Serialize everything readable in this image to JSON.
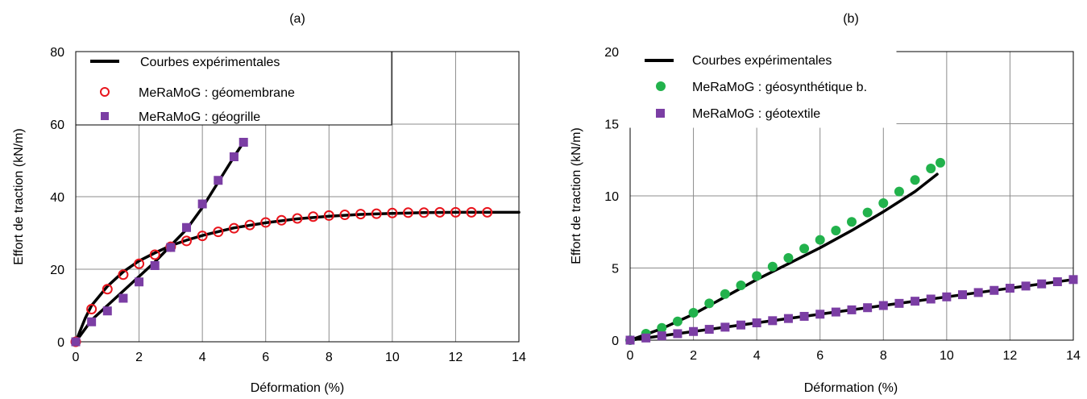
{
  "chart_data": [
    {
      "type": "line",
      "panel_label": "(a)",
      "xlabel": "Déformation (%)",
      "ylabel": "Effort de traction (kN/m)",
      "xlim": [
        0,
        14
      ],
      "ylim": [
        0,
        80
      ],
      "xticks": [
        0,
        2,
        4,
        6,
        8,
        10,
        12,
        14
      ],
      "yticks": [
        0,
        20,
        40,
        60,
        80
      ],
      "grid": true,
      "legend_position": "top-left",
      "series": [
        {
          "name": "Courbes expérimentales",
          "kind": "line",
          "color": "#000000",
          "x": [
            0,
            0.3,
            0.5,
            1,
            1.5,
            2,
            2.5,
            3,
            3.5,
            4,
            5,
            6,
            7,
            8,
            9,
            10,
            11,
            12,
            13,
            14
          ],
          "y": [
            0,
            6.5,
            10,
            15.3,
            19.3,
            22.3,
            24.5,
            26.5,
            28,
            29.3,
            31.4,
            32.8,
            33.9,
            34.6,
            35.1,
            35.4,
            35.6,
            35.7,
            35.7,
            35.7
          ]
        },
        {
          "name": "Courbes expérimentales",
          "kind": "line",
          "color": "#000000",
          "in_legend": false,
          "x": [
            0,
            0.5,
            1,
            1.5,
            2,
            2.5,
            3,
            3.5,
            4,
            4.5,
            5,
            5.3
          ],
          "y": [
            0,
            6,
            10,
            14,
            18,
            22,
            26.5,
            31,
            37,
            44,
            51,
            55
          ]
        },
        {
          "name": "MeRaMoG : géomembrane",
          "kind": "marker",
          "marker": "circle-open",
          "color": "#e8141c",
          "x": [
            0,
            0.5,
            1,
            1.5,
            2,
            2.5,
            3,
            3.5,
            4,
            4.5,
            5,
            5.5,
            6,
            6.5,
            7,
            7.5,
            8,
            8.5,
            9,
            9.5,
            10,
            10.5,
            11,
            11.5,
            12,
            12.5,
            13
          ],
          "y": [
            0,
            9,
            14.5,
            18.5,
            21.5,
            24,
            26.2,
            27.8,
            29.2,
            30.3,
            31.3,
            32.2,
            32.9,
            33.5,
            34,
            34.5,
            34.8,
            35,
            35.2,
            35.3,
            35.5,
            35.6,
            35.6,
            35.7,
            35.7,
            35.7,
            35.7
          ]
        },
        {
          "name": "MeRaMoG : géogrille",
          "kind": "marker",
          "marker": "square",
          "color": "#7b3ea4",
          "x": [
            0,
            0.5,
            1,
            1.5,
            2,
            2.5,
            3,
            3.5,
            4,
            4.5,
            5,
            5.3
          ],
          "y": [
            0,
            5.5,
            8.5,
            12,
            16.5,
            21,
            26,
            31.5,
            38,
            44.5,
            51,
            55
          ]
        }
      ]
    },
    {
      "type": "line",
      "panel_label": "(b)",
      "xlabel": "Déformation (%)",
      "ylabel": "Effort de traction (kN/m)",
      "xlim": [
        0,
        14
      ],
      "ylim": [
        0,
        20
      ],
      "xticks": [
        0,
        2,
        4,
        6,
        8,
        10,
        12,
        14
      ],
      "yticks": [
        0,
        5,
        10,
        15,
        20
      ],
      "grid": true,
      "legend_position": "top-left",
      "series": [
        {
          "name": "Courbes expérimentales",
          "kind": "line",
          "color": "#000000",
          "x": [
            0,
            0.5,
            1,
            1.5,
            2,
            3,
            4,
            5,
            6,
            7,
            8,
            9,
            9.7
          ],
          "y": [
            0,
            0.4,
            0.8,
            1.3,
            1.8,
            3,
            4.2,
            5.3,
            6.4,
            7.6,
            8.9,
            10.3,
            11.5
          ]
        },
        {
          "name": "Courbes expérimentales",
          "kind": "line",
          "color": "#000000",
          "in_legend": false,
          "x": [
            0,
            1,
            2,
            3,
            4,
            5,
            6,
            7,
            8,
            9,
            10,
            11,
            12,
            13,
            14
          ],
          "y": [
            0,
            0.3,
            0.6,
            0.9,
            1.2,
            1.5,
            1.8,
            2.1,
            2.4,
            2.7,
            3,
            3.3,
            3.6,
            3.9,
            4.2
          ]
        },
        {
          "name": "MeRaMoG : géosynthétique b.",
          "kind": "marker",
          "marker": "circle-filled",
          "color": "#22b24c",
          "x": [
            0,
            0.5,
            1,
            1.5,
            2,
            2.5,
            3,
            3.5,
            4,
            4.5,
            5,
            5.5,
            6,
            6.5,
            7,
            7.5,
            8,
            8.5,
            9,
            9.5,
            9.8
          ],
          "y": [
            0,
            0.45,
            0.85,
            1.3,
            1.9,
            2.55,
            3.2,
            3.8,
            4.45,
            5.1,
            5.7,
            6.35,
            6.95,
            7.6,
            8.2,
            8.85,
            9.5,
            10.3,
            11.1,
            11.9,
            12.3
          ]
        },
        {
          "name": "MeRaMoG : géotextile",
          "kind": "marker",
          "marker": "square",
          "color": "#7b3ea4",
          "x": [
            0,
            0.5,
            1,
            1.5,
            2,
            2.5,
            3,
            3.5,
            4,
            4.5,
            5,
            5.5,
            6,
            6.5,
            7,
            7.5,
            8,
            8.5,
            9,
            9.5,
            10,
            10.5,
            11,
            11.5,
            12,
            12.5,
            13,
            13.5,
            14
          ],
          "y": [
            0,
            0.15,
            0.3,
            0.45,
            0.6,
            0.75,
            0.9,
            1.05,
            1.2,
            1.35,
            1.5,
            1.65,
            1.8,
            1.95,
            2.1,
            2.25,
            2.4,
            2.55,
            2.7,
            2.85,
            3,
            3.15,
            3.3,
            3.45,
            3.6,
            3.75,
            3.9,
            4.05,
            4.2
          ]
        }
      ]
    }
  ]
}
